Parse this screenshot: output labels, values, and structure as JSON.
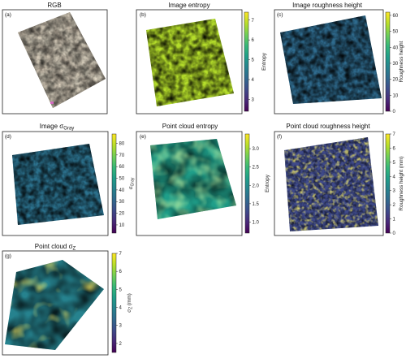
{
  "panels": [
    {
      "id": "a",
      "label": "(a)",
      "title": "RGB",
      "type": "rgb",
      "colorbar": null
    },
    {
      "id": "b",
      "label": "(b)",
      "title": "Image entropy",
      "type": "map",
      "colorbar": {
        "label": "Entropy",
        "ticks": [
          "3",
          "4",
          "5",
          "6",
          "7"
        ],
        "min": 2.4,
        "max": 7.4
      }
    },
    {
      "id": "c",
      "label": "(c)",
      "title": "Image roughness height",
      "type": "map",
      "colorbar": {
        "label": "Roughness height",
        "ticks": [
          "0",
          "10",
          "20",
          "30",
          "40",
          "50",
          "60"
        ],
        "min": 0,
        "max": 62
      }
    },
    {
      "id": "d",
      "label": "(d)",
      "title": "Image σGray",
      "type": "map",
      "colorbar": {
        "label": "σGray",
        "ticks": [
          "10",
          "20",
          "30",
          "40",
          "50",
          "60",
          "70",
          "80"
        ],
        "min": 3,
        "max": 88
      }
    },
    {
      "id": "e",
      "label": "(e)",
      "title": "Point cloud entropy",
      "type": "map",
      "colorbar": {
        "label": "Entropy",
        "ticks": [
          "1.0",
          "1.5",
          "2.0",
          "2.5",
          "3.0"
        ],
        "min": 0.7,
        "max": 3.4
      }
    },
    {
      "id": "f",
      "label": "(f)",
      "title": "Point cloud roughness height",
      "type": "map",
      "colorbar": {
        "label": "Roughness height (mm)",
        "ticks": [
          "0",
          "1",
          "2",
          "3",
          "4",
          "5",
          "6",
          "7"
        ],
        "min": 0,
        "max": 7
      }
    },
    {
      "id": "g",
      "label": "(g)",
      "title": "Point cloud σZ",
      "type": "map",
      "colorbar": {
        "label": "σZ (mm)",
        "ticks": [
          "2",
          "3",
          "4",
          "5",
          "6",
          "7"
        ],
        "min": 1.5,
        "max": 7
      }
    }
  ],
  "colors": {
    "viridis": [
      "#440154",
      "#482878",
      "#3e4989",
      "#31688e",
      "#26828e",
      "#1f9e89",
      "#35b779",
      "#6ece58",
      "#b5de2b",
      "#fde725"
    ],
    "frame": "#222222"
  }
}
